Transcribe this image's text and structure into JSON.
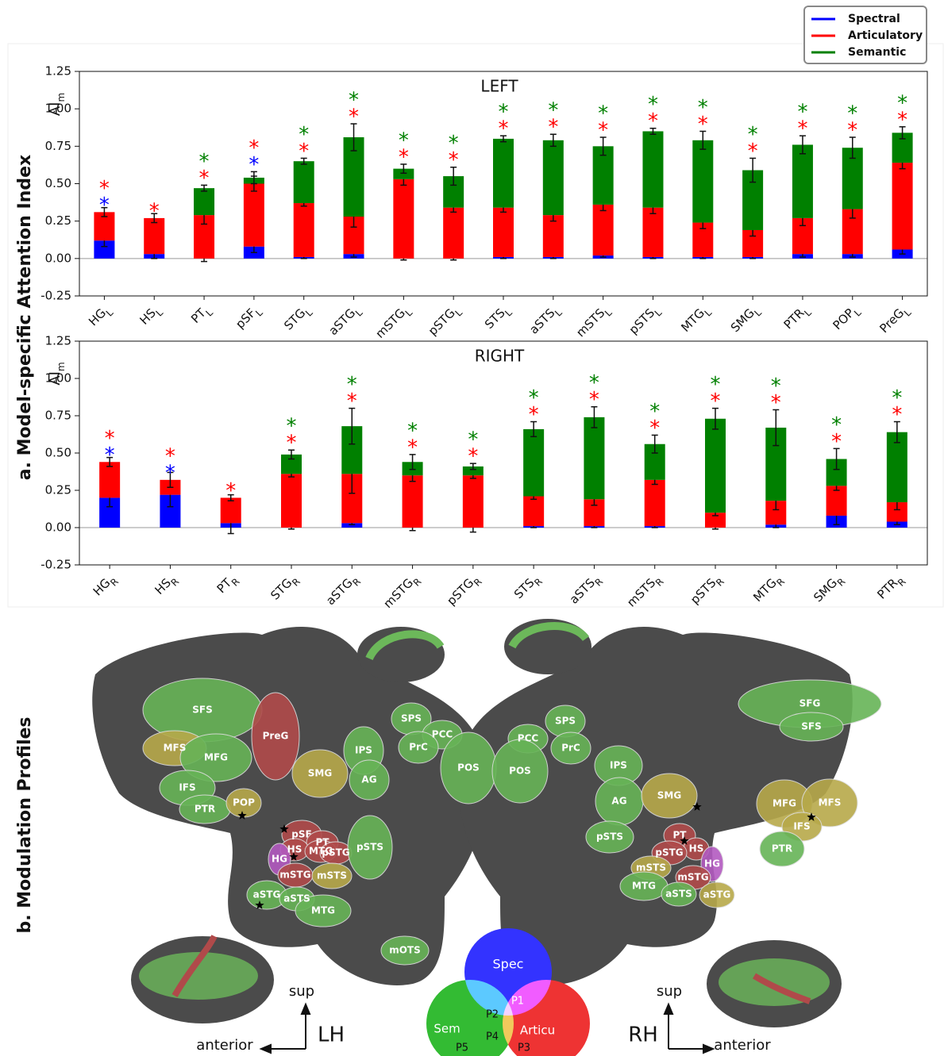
{
  "panel_a_title": "a. Model-specific Attention Index",
  "chart_data": [
    {
      "type": "bar",
      "stacked": true,
      "title": "LEFT",
      "ylabel": "AI",
      "ylabel_subscript": "m",
      "categories": [
        "HG",
        "HS",
        "PT",
        "pSF",
        "STG",
        "aSTG",
        "mSTG",
        "pSTG",
        "STS",
        "aSTS",
        "mSTS",
        "pSTS",
        "MTG",
        "SMG",
        "PTR",
        "POP",
        "PreG"
      ],
      "category_subscript": "L",
      "significance_marker": "*",
      "legend": "upper right",
      "series": [
        {
          "name": "Spectral",
          "color": "#0000ff",
          "values": [
            0.12,
            0.03,
            0.0,
            0.08,
            0.01,
            0.03,
            0.0,
            0.0,
            0.01,
            0.01,
            0.02,
            0.01,
            0.01,
            0.01,
            0.03,
            0.03,
            0.06
          ],
          "errors": [
            0.04,
            0.03,
            0.02,
            0.04,
            0.01,
            0.02,
            0.01,
            0.01,
            0.01,
            0.01,
            0.01,
            0.01,
            0.01,
            0.01,
            0.02,
            0.02,
            0.03
          ],
          "significant": [
            true,
            false,
            false,
            true,
            false,
            false,
            false,
            false,
            false,
            false,
            false,
            false,
            false,
            false,
            false,
            false,
            false
          ]
        },
        {
          "name": "Articulatory",
          "color": "#ff0000",
          "values": [
            0.19,
            0.24,
            0.29,
            0.42,
            0.36,
            0.25,
            0.53,
            0.34,
            0.33,
            0.28,
            0.34,
            0.33,
            0.23,
            0.18,
            0.24,
            0.3,
            0.58
          ],
          "errors": [
            0.03,
            0.03,
            0.06,
            0.05,
            0.02,
            0.07,
            0.04,
            0.03,
            0.03,
            0.04,
            0.04,
            0.04,
            0.04,
            0.04,
            0.05,
            0.06,
            0.04
          ],
          "significant": [
            true,
            true,
            true,
            true,
            true,
            true,
            true,
            true,
            true,
            true,
            true,
            true,
            true,
            true,
            true,
            true,
            true
          ]
        },
        {
          "name": "Semantic",
          "color": "#008000",
          "values": [
            0,
            0,
            0.18,
            0.04,
            0.28,
            0.53,
            0.07,
            0.21,
            0.46,
            0.5,
            0.39,
            0.51,
            0.55,
            0.4,
            0.49,
            0.41,
            0.2
          ],
          "errors": [
            0,
            0,
            0.02,
            0.04,
            0.02,
            0.09,
            0.03,
            0.06,
            0.02,
            0.04,
            0.06,
            0.02,
            0.06,
            0.08,
            0.06,
            0.07,
            0.04
          ],
          "significant": [
            false,
            false,
            true,
            false,
            true,
            true,
            true,
            true,
            true,
            true,
            true,
            true,
            true,
            true,
            true,
            true,
            true
          ]
        }
      ],
      "ylim": [
        -0.25,
        1.25
      ],
      "yticks": [
        -0.25,
        {
          "value": 0,
          "label": "0.00"
        },
        0.25,
        {
          "value": 0.5,
          "label": "0.50"
        },
        0.75,
        {
          "value": 1,
          "label": "1.00"
        },
        1.25
      ]
    },
    {
      "type": "bar",
      "stacked": true,
      "title": "RIGHT",
      "ylabel": "AI",
      "ylabel_subscript": "m",
      "categories": [
        "HG",
        "HS",
        "PT",
        "STG",
        "aSTG",
        "mSTG",
        "pSTG",
        "STS",
        "aSTS",
        "mSTS",
        "pSTS",
        "MTG",
        "SMG",
        "PTR"
      ],
      "category_subscript": "R",
      "significance_marker": "*",
      "series": [
        {
          "color": "#0000ff",
          "values": [
            0.2,
            0.22,
            0.03,
            0.0,
            0.03,
            0.0,
            0.0,
            0.01,
            0.01,
            0.01,
            0.0,
            0.02,
            0.08,
            0.04
          ],
          "errors": [
            0.06,
            0.08,
            0.07,
            0.01,
            0.01,
            0.02,
            0.03,
            0.01,
            0.01,
            0.01,
            0.01,
            0.02,
            0.06,
            0.02
          ],
          "significant": [
            true,
            true,
            false,
            false,
            false,
            false,
            false,
            false,
            false,
            false,
            false,
            false,
            false,
            false
          ]
        },
        {
          "color": "#ff0000",
          "values": [
            0.24,
            0.1,
            0.17,
            0.36,
            0.33,
            0.35,
            0.35,
            0.2,
            0.18,
            0.31,
            0.1,
            0.16,
            0.2,
            0.13
          ],
          "errors": [
            0.03,
            0.05,
            0.02,
            0.02,
            0.13,
            0.04,
            0.02,
            0.02,
            0.04,
            0.03,
            0.02,
            0.06,
            0.03,
            0.05
          ],
          "significant": [
            true,
            true,
            true,
            true,
            true,
            true,
            true,
            true,
            true,
            true,
            true,
            true,
            true,
            true
          ]
        },
        {
          "color": "#008000",
          "values": [
            0,
            0,
            0,
            0.13,
            0.32,
            0.09,
            0.06,
            0.45,
            0.55,
            0.24,
            0.63,
            0.49,
            0.18,
            0.47
          ],
          "errors": [
            0,
            0,
            0,
            0.03,
            0.12,
            0.05,
            0.02,
            0.05,
            0.07,
            0.06,
            0.07,
            0.12,
            0.07,
            0.07
          ],
          "significant": [
            false,
            false,
            false,
            true,
            true,
            true,
            true,
            true,
            true,
            true,
            true,
            true,
            true,
            true
          ]
        }
      ],
      "ylim": [
        -0.25,
        1.25
      ],
      "yticks": [
        -0.25,
        {
          "value": 0,
          "label": "0.00"
        },
        0.25,
        {
          "value": 0.5,
          "label": "0.50"
        },
        0.75,
        {
          "value": 1,
          "label": "1.00"
        },
        1.25
      ]
    }
  ],
  "panel_b": {
    "title": "b. Modulation Profiles",
    "left_regions": [
      "SFS",
      "MFS",
      "MFG",
      "IFS",
      "PTR",
      "POP",
      "PreG",
      "SMG",
      "IPS",
      "AG",
      "pSF",
      "PT",
      "HS",
      "MTG",
      "pSTG",
      "HG",
      "mSTG",
      "mSTS",
      "pSTS",
      "aSTG",
      "aSTS",
      "MTG",
      "mOTS",
      "SPS",
      "PCC",
      "PrC",
      "POS"
    ],
    "right_regions": [
      "SPS",
      "PCC",
      "PrC",
      "POS",
      "IPS",
      "AG",
      "pSTS",
      "SMG",
      "PT",
      "HS",
      "pSTG",
      "HG",
      "mSTS",
      "mSTG",
      "MTG",
      "aSTS",
      "aSTG",
      "SFG",
      "SFS",
      "MFG",
      "MFS",
      "IFS",
      "PTR"
    ],
    "venn_sets": [
      "Spec",
      "Sem",
      "Articu"
    ],
    "profiles": [
      "P1",
      "P2",
      "P3",
      "P4",
      "P5"
    ],
    "up_label": "sup",
    "forward_label": "anterior",
    "hemispheres": [
      "LH",
      "RH"
    ]
  }
}
